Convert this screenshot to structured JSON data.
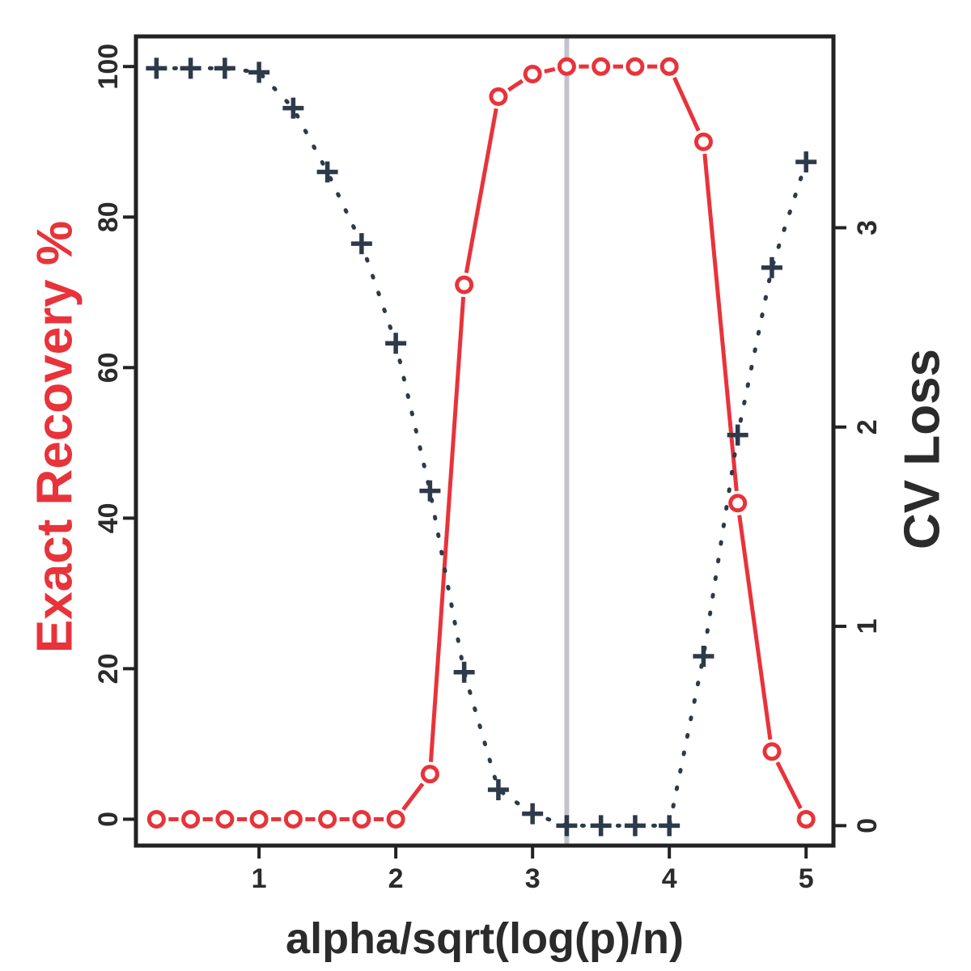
{
  "chart_data": {
    "type": "line",
    "xlabel": "alpha/sqrt(log(p)/n)",
    "ylabel_left": "Exact Recovery %",
    "ylabel_right": "CV Loss",
    "xlim": [
      0.1,
      5.2
    ],
    "ylim_left": [
      -3.5,
      104
    ],
    "ylim_right": [
      -0.1,
      3.96
    ],
    "x_ticks": [
      "1",
      "2",
      "3",
      "4",
      "5"
    ],
    "y_left_ticks": [
      "0",
      "20",
      "40",
      "60",
      "80",
      "100"
    ],
    "y_right_ticks": [
      "0",
      "1",
      "2",
      "3"
    ],
    "vertical_line_x": 3.25,
    "colors": {
      "recovery": "#e8333a",
      "cv_loss": "#2c3a4a",
      "vline": "#c3c3cc",
      "frame": "#222222"
    },
    "series": [
      {
        "axis": "left",
        "style": "dashed-circles",
        "x": [
          0.25,
          0.5,
          0.75,
          1.0,
          1.25,
          1.5,
          1.75,
          2.0,
          2.25,
          2.5,
          2.75,
          3.0,
          3.25,
          3.5,
          3.75,
          4.0,
          4.25,
          4.5,
          4.75,
          5.0
        ],
        "values": [
          0,
          0,
          0,
          0,
          0,
          0,
          0,
          0,
          6,
          71,
          96,
          99,
          100,
          100,
          100,
          100,
          90,
          42,
          9,
          0
        ]
      },
      {
        "axis": "right",
        "style": "dotted-plus",
        "x": [
          0.25,
          0.5,
          0.75,
          1.0,
          1.25,
          1.5,
          1.75,
          2.0,
          2.25,
          2.5,
          2.75,
          3.0,
          3.25,
          3.5,
          3.75,
          4.0,
          4.25,
          4.5,
          4.75,
          5.0
        ],
        "values": [
          3.8,
          3.8,
          3.8,
          3.78,
          3.6,
          3.28,
          2.92,
          2.42,
          1.68,
          0.77,
          0.18,
          0.06,
          0.0,
          0.0,
          0.0,
          0.0,
          0.85,
          1.96,
          2.8,
          3.33
        ]
      }
    ]
  }
}
